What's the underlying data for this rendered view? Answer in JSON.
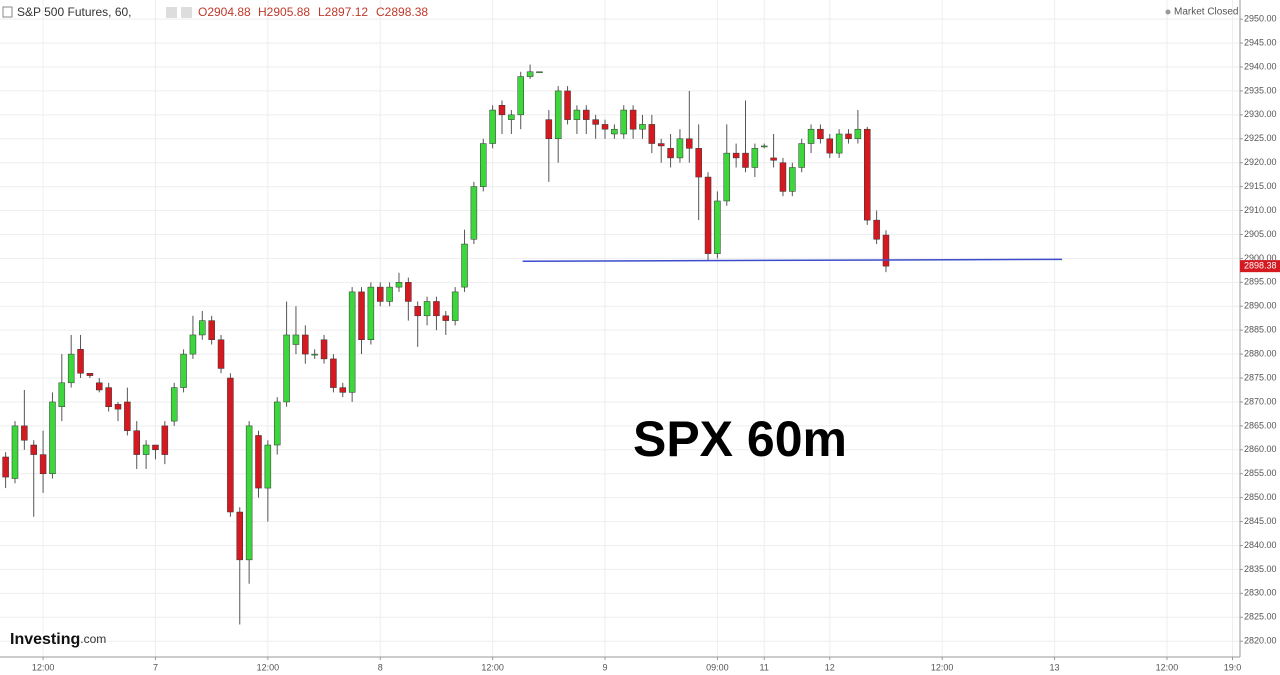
{
  "header": {
    "symbol": "S&P 500 Futures, 60,",
    "open": "O2904.88",
    "high": "H2905.88",
    "low": "L2897.12",
    "close": "C2898.38",
    "status": "Market Closed",
    "logo": "Investing",
    "logo_suffix": ".com"
  },
  "chart_data": {
    "type": "candlestick",
    "annotation": "SPX 60m",
    "up_color": "#3dd63d",
    "down_color": "#d41920",
    "grid": true,
    "open": [
      2858.5,
      2854,
      2865,
      2861,
      2859,
      2855,
      2869,
      2874,
      2881,
      2876,
      2874,
      2873,
      2869.5,
      2870,
      2864,
      2859,
      2861,
      2865,
      2866,
      2873,
      2880,
      2884,
      2887,
      2883,
      2875,
      2847,
      2837,
      2863,
      2852,
      2861,
      2870,
      2882,
      2884,
      2880,
      2883,
      2879,
      2873,
      2872,
      2893,
      2883,
      2894,
      2891,
      2894,
      2895,
      2890,
      2888,
      2891,
      2888,
      2887,
      2894,
      2904,
      2915,
      2924,
      2932,
      2929,
      2930,
      2938,
      2939,
      2929,
      2925,
      2935,
      2929,
      2931,
      2929,
      2928,
      2926,
      2926,
      2931,
      2927,
      2928,
      2924,
      2923,
      2921,
      2925,
      2923,
      2917,
      2901,
      2912,
      2922,
      2922,
      2919,
      2923.5,
      2921,
      2920,
      2914,
      2919,
      2924,
      2927,
      2925,
      2922,
      2926,
      2925,
      2927,
      2908,
      2904.88
    ],
    "high": [
      2859.5,
      2866,
      2872.5,
      2862,
      2864,
      2872,
      2880,
      2884,
      2884,
      2876,
      2875,
      2874,
      2870,
      2873,
      2866,
      2862,
      2861,
      2866,
      2874,
      2881,
      2888,
      2889,
      2888,
      2884,
      2876,
      2848,
      2866,
      2864,
      2862,
      2871,
      2891,
      2890,
      2886,
      2881,
      2884,
      2880,
      2874,
      2894,
      2894,
      2895,
      2895,
      2895,
      2897,
      2896,
      2891,
      2892,
      2892,
      2889,
      2894,
      2906,
      2916,
      2925,
      2932,
      2933,
      2931,
      2939,
      2940.5,
      2939,
      2931,
      2936,
      2936,
      2932,
      2932,
      2930,
      2929,
      2928,
      2932,
      2932,
      2930,
      2930,
      2925,
      2926,
      2927,
      2935,
      2928,
      2918,
      2914,
      2928,
      2924,
      2933,
      2924,
      2924,
      2926,
      2921,
      2920,
      2925,
      2928,
      2928,
      2926,
      2927,
      2927,
      2931,
      2927.5,
      2910,
      2905.88
    ],
    "low": [
      2852,
      2853,
      2860,
      2846,
      2851,
      2854,
      2866,
      2873,
      2875,
      2875,
      2872,
      2868,
      2866,
      2863,
      2856,
      2856,
      2858,
      2857,
      2865,
      2872,
      2879,
      2883,
      2882,
      2876,
      2846,
      2823.5,
      2832,
      2850,
      2845,
      2859,
      2869,
      2880,
      2878,
      2879,
      2878,
      2872,
      2871,
      2870,
      2880,
      2882,
      2890,
      2890,
      2893,
      2887,
      2881.5,
      2886,
      2885,
      2884,
      2886,
      2893,
      2903,
      2914,
      2923,
      2926,
      2926,
      2927,
      2937.5,
      2939,
      2916,
      2920,
      2928,
      2926,
      2926,
      2925,
      2925,
      2925,
      2925,
      2925,
      2925,
      2922,
      2920,
      2919,
      2920,
      2920,
      2908,
      2899.5,
      2900,
      2911,
      2919,
      2918,
      2917,
      2923,
      2919,
      2913,
      2913,
      2918,
      2922,
      2924,
      2921,
      2921,
      2924,
      2924,
      2907,
      2903,
      2897.12
    ],
    "close": [
      2854.3,
      2865,
      2862,
      2859,
      2855,
      2870,
      2874,
      2880,
      2876,
      2875.5,
      2872.5,
      2869,
      2868.5,
      2864,
      2859,
      2861,
      2860,
      2859,
      2873,
      2880,
      2884,
      2887,
      2883,
      2877,
      2847,
      2837,
      2865,
      2852,
      2861,
      2870,
      2884,
      2884,
      2880,
      2880,
      2879,
      2873,
      2872,
      2893,
      2883,
      2894,
      2891,
      2894,
      2895,
      2891,
      2888,
      2891,
      2888,
      2887,
      2893,
      2903,
      2915,
      2924,
      2931,
      2930,
      2930,
      2938,
      2939,
      2939,
      2925,
      2935,
      2929,
      2931,
      2929,
      2928,
      2927,
      2927,
      2931,
      2927,
      2928,
      2924,
      2923.5,
      2921,
      2925,
      2923,
      2917,
      2901,
      2912,
      2922,
      2921,
      2919,
      2923,
      2923.5,
      2920.5,
      2914,
      2919,
      2924,
      2927,
      2925,
      2922,
      2926,
      2925,
      2927,
      2908,
      2904,
      2898.38
    ],
    "last_price_color": "#d41920",
    "trendline": {
      "x": [
        55.2,
        112.8
      ],
      "y": [
        2899.4,
        2899.8
      ],
      "color": "#3b4ccc"
    },
    "xlim": [
      -0.6,
      131.8
    ],
    "xticks": [
      {
        "value": 4,
        "label": "12:00"
      },
      {
        "value": 16,
        "label": "7"
      },
      {
        "value": 28,
        "label": "12:00"
      },
      {
        "value": 40,
        "label": "8"
      },
      {
        "value": 52,
        "label": "12:00"
      },
      {
        "value": 64,
        "label": "9"
      },
      {
        "value": 76,
        "label": "09:00"
      },
      {
        "value": 81,
        "label": "11"
      },
      {
        "value": 88,
        "label": "12"
      },
      {
        "value": 100,
        "label": "12:00"
      },
      {
        "value": 112,
        "label": "13"
      },
      {
        "value": 124,
        "label": "12:00"
      },
      {
        "value": 131,
        "label": "19:0"
      }
    ],
    "ylim": [
      2816.7,
      2954
    ],
    "yticks": [
      {
        "value": 2820,
        "label": "2820.00"
      },
      {
        "value": 2825,
        "label": "2825.00"
      },
      {
        "value": 2830,
        "label": "2830.00"
      },
      {
        "value": 2835,
        "label": "2835.00"
      },
      {
        "value": 2840,
        "label": "2840.00"
      },
      {
        "value": 2845,
        "label": "2845.00"
      },
      {
        "value": 2850,
        "label": "2850.00"
      },
      {
        "value": 2855,
        "label": "2855.00"
      },
      {
        "value": 2860,
        "label": "2860.00"
      },
      {
        "value": 2865,
        "label": "2865.00"
      },
      {
        "value": 2870,
        "label": "2870.00"
      },
      {
        "value": 2875,
        "label": "2875.00"
      },
      {
        "value": 2880,
        "label": "2880.00"
      },
      {
        "value": 2885,
        "label": "2885.00"
      },
      {
        "value": 2890,
        "label": "2890.00"
      },
      {
        "value": 2895,
        "label": "2895.00"
      },
      {
        "value": 2900,
        "label": "2900.00"
      },
      {
        "value": 2905,
        "label": "2905.00"
      },
      {
        "value": 2910,
        "label": "2910.00"
      },
      {
        "value": 2915,
        "label": "2915.00"
      },
      {
        "value": 2920,
        "label": "2920.00"
      },
      {
        "value": 2925,
        "label": "2925.00"
      },
      {
        "value": 2930,
        "label": "2930.00"
      },
      {
        "value": 2935,
        "label": "2935.00"
      },
      {
        "value": 2940,
        "label": "2940.00"
      },
      {
        "value": 2945,
        "label": "2945.00"
      },
      {
        "value": 2950,
        "label": "2950.00"
      }
    ]
  }
}
